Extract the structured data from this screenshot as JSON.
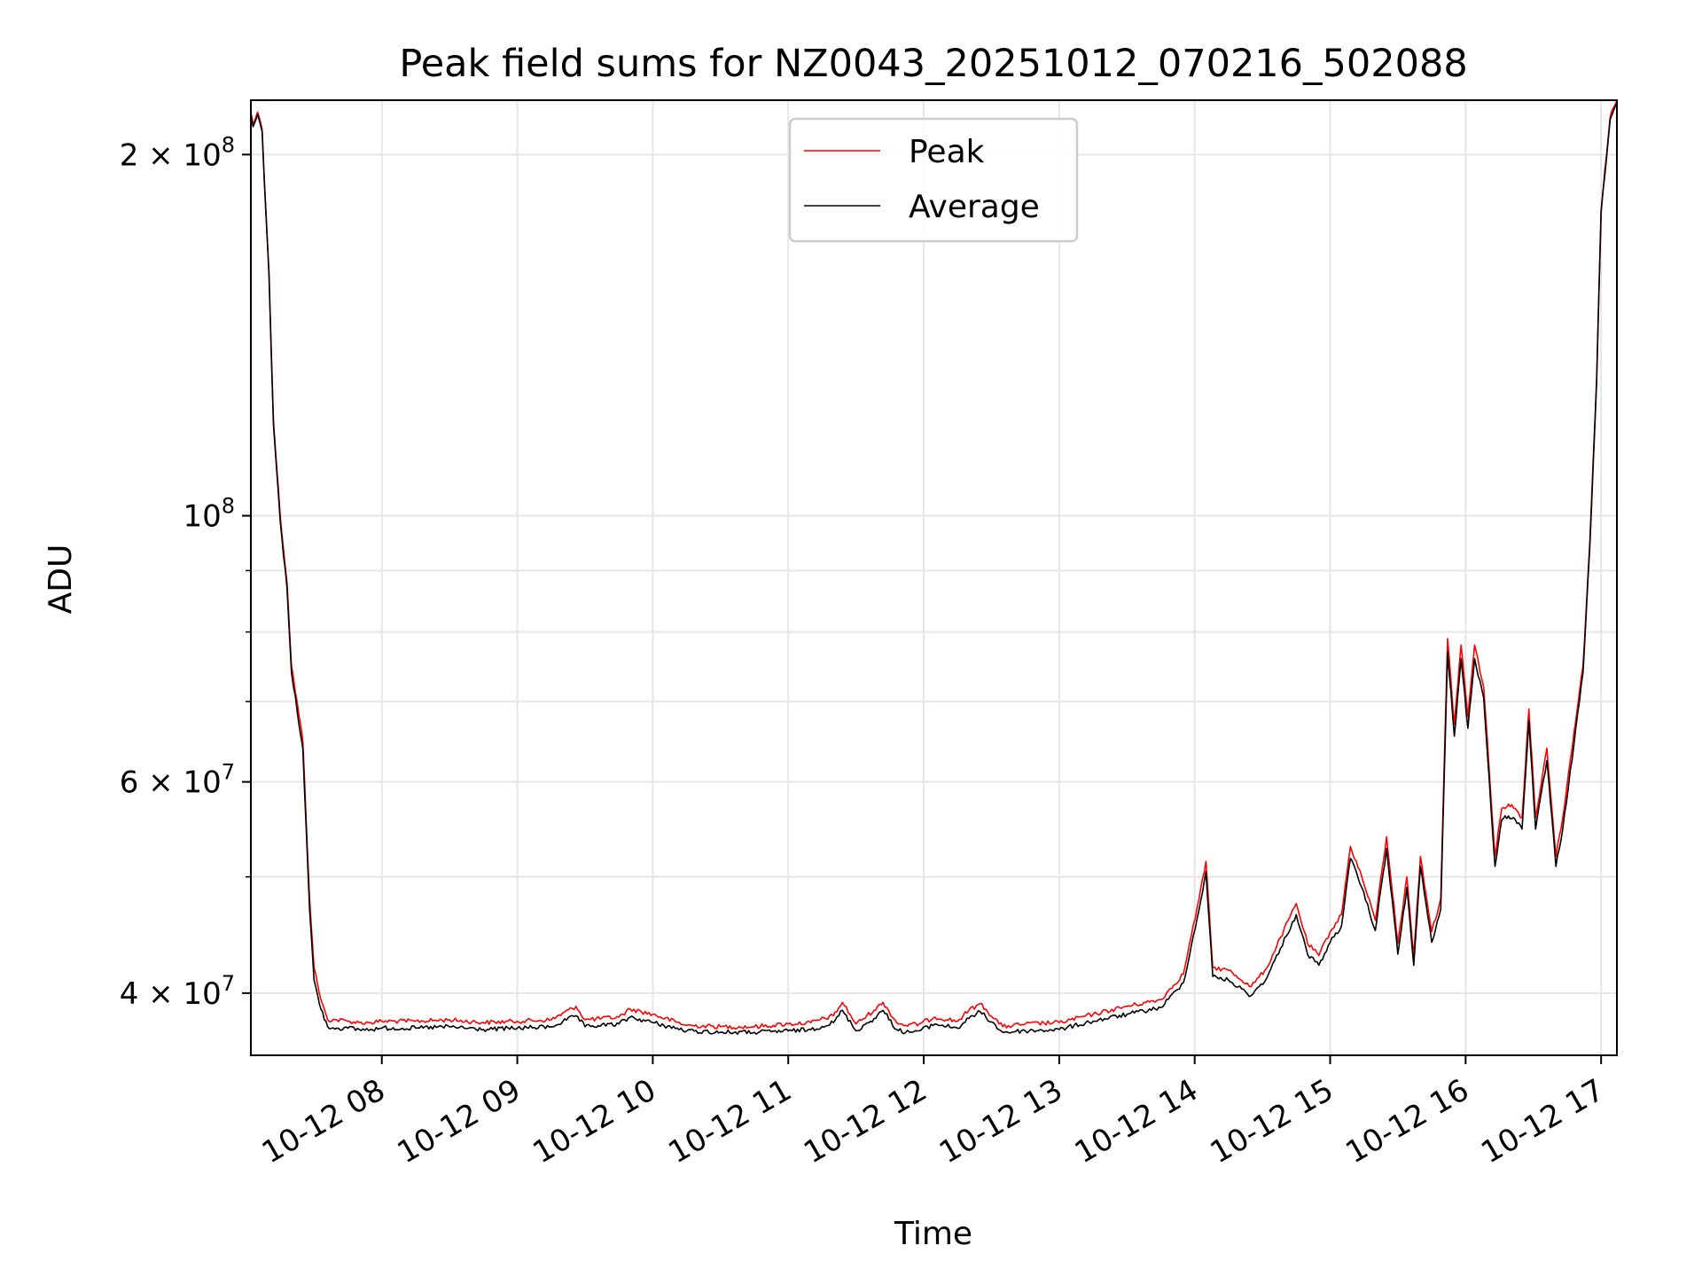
{
  "chart_data": {
    "type": "line",
    "title": "Peak field sums for NZ0043_20251012_070216_502088",
    "xlabel": "Time",
    "ylabel": "ADU",
    "yscale": "log",
    "ylim": [
      35500000,
      222000000
    ],
    "xlim": [
      "2025-10-12 07:02",
      "2025-10-12 17:07"
    ],
    "grid": true,
    "legend_position": "upper center",
    "x_ticks": [
      {
        "value": "2025-10-12 08:00",
        "label": "10-12 08"
      },
      {
        "value": "2025-10-12 09:00",
        "label": "10-12 09"
      },
      {
        "value": "2025-10-12 10:00",
        "label": "10-12 10"
      },
      {
        "value": "2025-10-12 11:00",
        "label": "10-12 11"
      },
      {
        "value": "2025-10-12 12:00",
        "label": "10-12 12"
      },
      {
        "value": "2025-10-12 13:00",
        "label": "10-12 13"
      },
      {
        "value": "2025-10-12 14:00",
        "label": "10-12 14"
      },
      {
        "value": "2025-10-12 15:00",
        "label": "10-12 15"
      },
      {
        "value": "2025-10-12 16:00",
        "label": "10-12 16"
      },
      {
        "value": "2025-10-12 17:00",
        "label": "10-12 17"
      }
    ],
    "y_major_ticks": [
      {
        "value": 40000000,
        "mant": "4",
        "exp": "7"
      },
      {
        "value": 60000000,
        "mant": "6",
        "exp": "7"
      },
      {
        "value": 100000000,
        "mant": "",
        "exp": "8"
      },
      {
        "value": 200000000,
        "mant": "2",
        "exp": "8"
      }
    ],
    "y_minor_ticks": [
      50000000,
      70000000,
      80000000,
      90000000
    ],
    "series": [
      {
        "name": "Peak",
        "color": "#ff0000",
        "x": [
          "2025-10-12 07:02",
          "2025-10-12 07:03",
          "2025-10-12 07:05",
          "2025-10-12 07:07",
          "2025-10-12 07:08",
          "2025-10-12 07:10",
          "2025-10-12 07:12",
          "2025-10-12 07:15",
          "2025-10-12 07:18",
          "2025-10-12 07:20",
          "2025-10-12 07:25",
          "2025-10-12 07:28",
          "2025-10-12 07:30",
          "2025-10-12 07:33",
          "2025-10-12 07:36",
          "2025-10-12 07:40",
          "2025-10-12 07:45",
          "2025-10-12 07:50",
          "2025-10-12 07:55",
          "2025-10-12 08:00",
          "2025-10-12 08:15",
          "2025-10-12 08:30",
          "2025-10-12 08:45",
          "2025-10-12 09:00",
          "2025-10-12 09:15",
          "2025-10-12 09:26",
          "2025-10-12 09:30",
          "2025-10-12 09:45",
          "2025-10-12 09:50",
          "2025-10-12 10:00",
          "2025-10-12 10:15",
          "2025-10-12 10:30",
          "2025-10-12 10:45",
          "2025-10-12 11:00",
          "2025-10-12 11:10",
          "2025-10-12 11:20",
          "2025-10-12 11:24",
          "2025-10-12 11:30",
          "2025-10-12 11:38",
          "2025-10-12 11:42",
          "2025-10-12 11:48",
          "2025-10-12 11:52",
          "2025-10-12 11:58",
          "2025-10-12 12:05",
          "2025-10-12 12:15",
          "2025-10-12 12:20",
          "2025-10-12 12:25",
          "2025-10-12 12:35",
          "2025-10-12 12:45",
          "2025-10-12 13:00",
          "2025-10-12 13:15",
          "2025-10-12 13:30",
          "2025-10-12 13:45",
          "2025-10-12 13:55",
          "2025-10-12 14:02",
          "2025-10-12 14:05",
          "2025-10-12 14:08",
          "2025-10-12 14:15",
          "2025-10-12 14:25",
          "2025-10-12 14:32",
          "2025-10-12 14:38",
          "2025-10-12 14:45",
          "2025-10-12 14:50",
          "2025-10-12 14:55",
          "2025-10-12 15:00",
          "2025-10-12 15:05",
          "2025-10-12 15:09",
          "2025-10-12 15:14",
          "2025-10-12 15:20",
          "2025-10-12 15:25",
          "2025-10-12 15:30",
          "2025-10-12 15:34",
          "2025-10-12 15:37",
          "2025-10-12 15:40",
          "2025-10-12 15:45",
          "2025-10-12 15:49",
          "2025-10-12 15:52",
          "2025-10-12 15:55",
          "2025-10-12 15:58",
          "2025-10-12 16:01",
          "2025-10-12 16:04",
          "2025-10-12 16:08",
          "2025-10-12 16:13",
          "2025-10-12 16:16",
          "2025-10-12 16:19",
          "2025-10-12 16:22",
          "2025-10-12 16:25",
          "2025-10-12 16:28",
          "2025-10-12 16:31",
          "2025-10-12 16:36",
          "2025-10-12 16:40",
          "2025-10-12 16:43",
          "2025-10-12 16:48",
          "2025-10-12 16:52",
          "2025-10-12 16:55",
          "2025-10-12 16:58",
          "2025-10-12 17:00",
          "2025-10-12 17:04",
          "2025-10-12 17:07"
        ],
        "y": [
          217000000,
          212000000,
          217000000,
          210000000,
          190000000,
          160000000,
          120000000,
          100000000,
          88000000,
          75000000,
          65000000,
          48000000,
          42000000,
          39500000,
          38000000,
          38000000,
          37900000,
          37800000,
          37800000,
          37900000,
          37900000,
          38000000,
          37800000,
          37900000,
          38000000,
          39000000,
          38000000,
          38200000,
          38800000,
          38400000,
          37600000,
          37500000,
          37500000,
          37700000,
          37800000,
          38300000,
          39300000,
          37700000,
          38700000,
          39300000,
          37800000,
          37600000,
          37700000,
          38200000,
          37900000,
          38700000,
          39200000,
          37500000,
          37700000,
          37800000,
          38400000,
          39000000,
          39500000,
          41500000,
          48000000,
          51500000,
          42000000,
          41800000,
          40500000,
          42000000,
          44500000,
          47500000,
          44000000,
          43000000,
          45000000,
          46500000,
          53000000,
          50000000,
          46000000,
          54000000,
          44000000,
          50000000,
          43000000,
          52000000,
          45000000,
          48000000,
          79000000,
          67000000,
          78000000,
          68000000,
          78000000,
          72000000,
          52000000,
          57000000,
          57500000,
          57000000,
          56000000,
          69000000,
          56000000,
          64000000,
          52000000,
          56000000,
          66000000,
          75000000,
          95000000,
          130000000,
          180000000,
          215000000,
          222000000
        ]
      },
      {
        "name": "Average",
        "color": "#000000",
        "x": [
          "2025-10-12 07:02",
          "2025-10-12 07:03",
          "2025-10-12 07:05",
          "2025-10-12 07:07",
          "2025-10-12 07:08",
          "2025-10-12 07:10",
          "2025-10-12 07:12",
          "2025-10-12 07:15",
          "2025-10-12 07:18",
          "2025-10-12 07:20",
          "2025-10-12 07:25",
          "2025-10-12 07:28",
          "2025-10-12 07:30",
          "2025-10-12 07:33",
          "2025-10-12 07:36",
          "2025-10-12 07:40",
          "2025-10-12 07:45",
          "2025-10-12 07:50",
          "2025-10-12 07:55",
          "2025-10-12 08:00",
          "2025-10-12 08:15",
          "2025-10-12 08:30",
          "2025-10-12 08:45",
          "2025-10-12 09:00",
          "2025-10-12 09:15",
          "2025-10-12 09:26",
          "2025-10-12 09:30",
          "2025-10-12 09:45",
          "2025-10-12 09:50",
          "2025-10-12 10:00",
          "2025-10-12 10:15",
          "2025-10-12 10:30",
          "2025-10-12 10:45",
          "2025-10-12 11:00",
          "2025-10-12 11:10",
          "2025-10-12 11:20",
          "2025-10-12 11:24",
          "2025-10-12 11:30",
          "2025-10-12 11:38",
          "2025-10-12 11:42",
          "2025-10-12 11:48",
          "2025-10-12 11:52",
          "2025-10-12 11:58",
          "2025-10-12 12:05",
          "2025-10-12 12:15",
          "2025-10-12 12:20",
          "2025-10-12 12:25",
          "2025-10-12 12:35",
          "2025-10-12 12:45",
          "2025-10-12 13:00",
          "2025-10-12 13:15",
          "2025-10-12 13:30",
          "2025-10-12 13:45",
          "2025-10-12 13:55",
          "2025-10-12 14:02",
          "2025-10-12 14:05",
          "2025-10-12 14:08",
          "2025-10-12 14:15",
          "2025-10-12 14:25",
          "2025-10-12 14:32",
          "2025-10-12 14:38",
          "2025-10-12 14:45",
          "2025-10-12 14:50",
          "2025-10-12 14:55",
          "2025-10-12 15:00",
          "2025-10-12 15:05",
          "2025-10-12 15:09",
          "2025-10-12 15:14",
          "2025-10-12 15:20",
          "2025-10-12 15:25",
          "2025-10-12 15:30",
          "2025-10-12 15:34",
          "2025-10-12 15:37",
          "2025-10-12 15:40",
          "2025-10-12 15:45",
          "2025-10-12 15:49",
          "2025-10-12 15:52",
          "2025-10-12 15:55",
          "2025-10-12 15:58",
          "2025-10-12 16:01",
          "2025-10-12 16:04",
          "2025-10-12 16:08",
          "2025-10-12 16:13",
          "2025-10-12 16:16",
          "2025-10-12 16:19",
          "2025-10-12 16:22",
          "2025-10-12 16:25",
          "2025-10-12 16:28",
          "2025-10-12 16:31",
          "2025-10-12 16:36",
          "2025-10-12 16:40",
          "2025-10-12 16:43",
          "2025-10-12 16:48",
          "2025-10-12 16:52",
          "2025-10-12 16:55",
          "2025-10-12 16:58",
          "2025-10-12 17:00",
          "2025-10-12 17:04",
          "2025-10-12 17:07"
        ],
        "y": [
          216000000,
          211000000,
          216000000,
          209000000,
          189000000,
          159000000,
          119000000,
          99000000,
          87000000,
          74000000,
          64000000,
          47000000,
          41000000,
          38800000,
          37500000,
          37400000,
          37400000,
          37300000,
          37300000,
          37400000,
          37400000,
          37500000,
          37300000,
          37400000,
          37500000,
          38300000,
          37500000,
          37700000,
          38200000,
          37800000,
          37200000,
          37100000,
          37100000,
          37200000,
          37300000,
          37800000,
          38700000,
          37200000,
          38100000,
          38700000,
          37300000,
          37100000,
          37200000,
          37700000,
          37400000,
          38100000,
          38600000,
          37100000,
          37200000,
          37300000,
          37900000,
          38400000,
          38900000,
          40800000,
          47000000,
          50500000,
          41300000,
          41000000,
          39800000,
          41200000,
          43600000,
          46500000,
          43100000,
          42200000,
          44100000,
          45500000,
          51800000,
          49000000,
          45100000,
          52800000,
          43100000,
          49000000,
          42200000,
          51000000,
          44100000,
          47000000,
          77000000,
          65500000,
          76000000,
          66500000,
          76000000,
          70500000,
          51000000,
          55800000,
          56200000,
          55800000,
          54800000,
          67500000,
          54800000,
          62500000,
          51000000,
          54800000,
          64500000,
          74000000,
          94000000,
          129000000,
          179000000,
          214000000,
          221000000
        ]
      }
    ]
  }
}
